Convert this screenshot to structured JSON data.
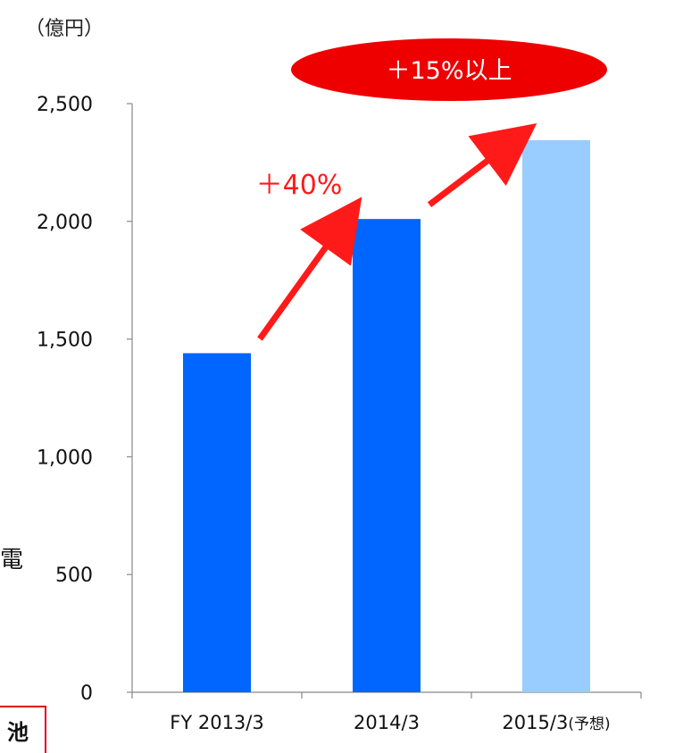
{
  "chart_data": {
    "type": "bar",
    "unit_label": "（億円）",
    "categories": [
      "FY 2013/3",
      "2014/3",
      "2015/3"
    ],
    "category_suffixes": [
      "",
      "",
      "(予想)"
    ],
    "values": [
      1440,
      2010,
      2345
    ],
    "bar_colors": [
      "#0066ff",
      "#0066ff",
      "#99ccff"
    ],
    "ylim": [
      0,
      2500
    ],
    "yticks": [
      0,
      500,
      1000,
      1500,
      2000,
      2500
    ],
    "ytick_labels": [
      "0",
      "500",
      "1,000",
      "1,500",
      "2,000",
      "2,500"
    ],
    "annotations": {
      "growth_1": "＋40%",
      "growth_2": "＋15%以上"
    },
    "accent_color": "#ff1a1a",
    "grid": false,
    "legend": "none"
  },
  "edge_fragments": {
    "left_char": "電",
    "bottom_box": "池"
  }
}
